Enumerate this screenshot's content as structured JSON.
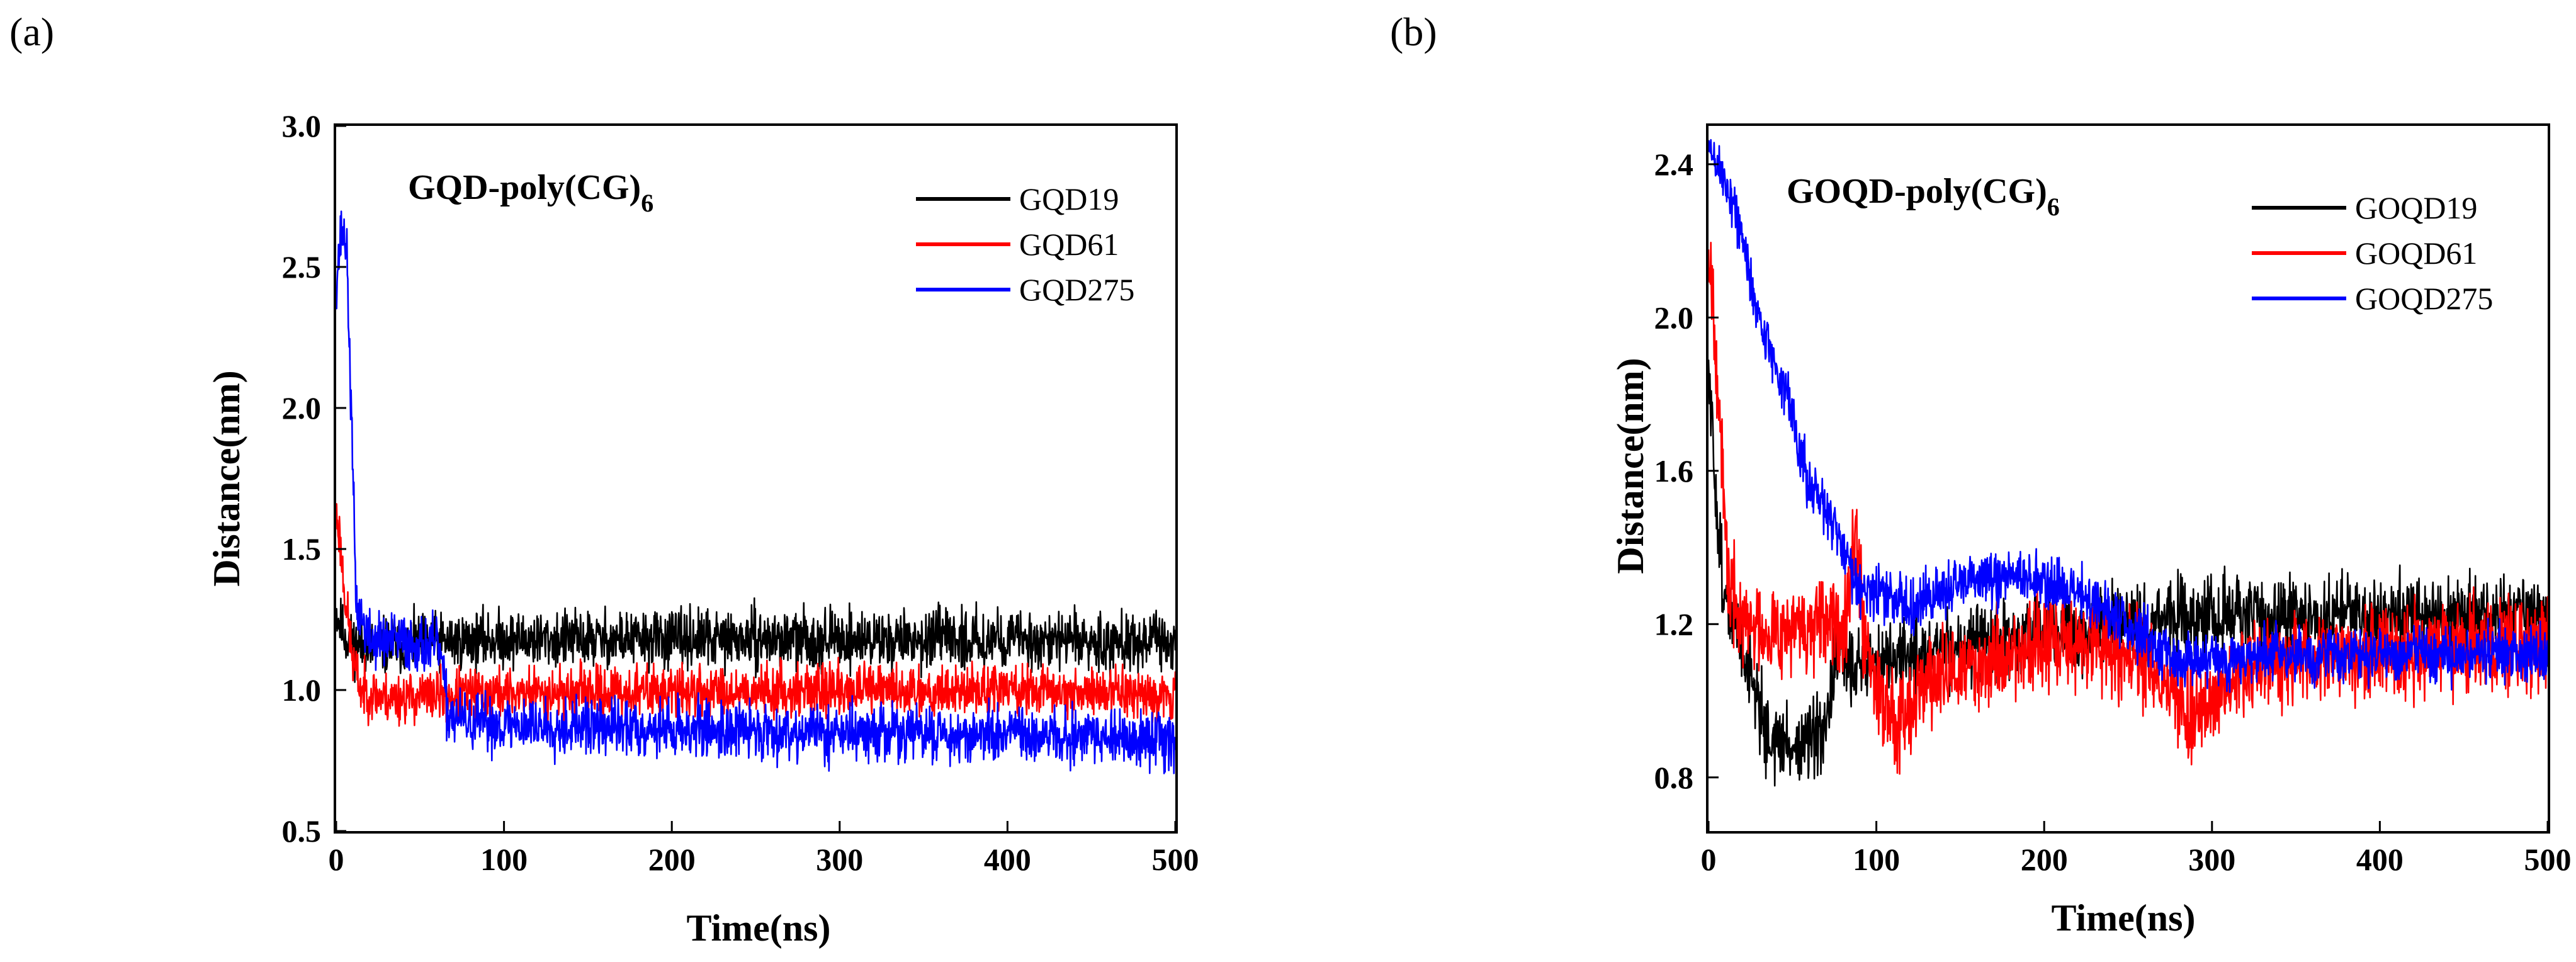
{
  "chart_data": [
    {
      "type": "line",
      "panel_label": "(a)",
      "title_main": "GQD-poly(CG)",
      "title_sub": "6",
      "xlabel": "Time(ns)",
      "ylabel": "Distance(nm)",
      "xlim": [
        0,
        500
      ],
      "ylim": [
        0.5,
        3.0
      ],
      "xticks": [
        0,
        100,
        200,
        300,
        400,
        500
      ],
      "yticks": [
        0.5,
        1.0,
        1.5,
        2.0,
        2.5,
        3.0
      ],
      "xtick_labels": [
        "0",
        "100",
        "200",
        "300",
        "400",
        "500"
      ],
      "ytick_labels": [
        "0.5",
        "1.0",
        "1.5",
        "2.0",
        "2.5",
        "3.0"
      ],
      "legend_position": "top-right",
      "series": [
        {
          "name": "GQD19",
          "color": "#000000",
          "noise": 0.05,
          "seed": 11,
          "trend": [
            [
              0,
              1.28
            ],
            [
              3,
              1.22
            ],
            [
              8,
              1.17
            ],
            [
              20,
              1.15
            ],
            [
              60,
              1.17
            ],
            [
              100,
              1.18
            ],
            [
              250,
              1.18
            ],
            [
              400,
              1.18
            ],
            [
              500,
              1.17
            ]
          ]
        },
        {
          "name": "GQD61",
          "color": "#ff0000",
          "noise": 0.045,
          "seed": 23,
          "trend": [
            [
              0,
              1.62
            ],
            [
              2,
              1.55
            ],
            [
              5,
              1.35
            ],
            [
              10,
              1.1
            ],
            [
              15,
              1.0
            ],
            [
              30,
              0.97
            ],
            [
              60,
              0.98
            ],
            [
              100,
              0.99
            ],
            [
              300,
              1.0
            ],
            [
              400,
              1.0
            ],
            [
              500,
              0.99
            ]
          ]
        },
        {
          "name": "GQD275",
          "color": "#0000ff",
          "noise": 0.05,
          "seed": 37,
          "trend": [
            [
              0,
              2.45
            ],
            [
              3,
              2.62
            ],
            [
              6,
              2.6
            ],
            [
              8,
              2.2
            ],
            [
              12,
              1.3
            ],
            [
              20,
              1.18
            ],
            [
              40,
              1.17
            ],
            [
              62,
              1.15
            ],
            [
              66,
              0.92
            ],
            [
              80,
              0.88
            ],
            [
              150,
              0.87
            ],
            [
              300,
              0.85
            ],
            [
              400,
              0.84
            ],
            [
              500,
              0.82
            ]
          ]
        }
      ]
    },
    {
      "type": "line",
      "panel_label": "(b)",
      "title_main": "GOQD-poly(CG)",
      "title_sub": "6",
      "xlabel": "Time(ns)",
      "ylabel": "Distance(nm)",
      "xlim": [
        0,
        500
      ],
      "ylim": [
        0.66,
        2.5
      ],
      "xticks": [
        0,
        100,
        200,
        300,
        400,
        500
      ],
      "yticks": [
        0.8,
        1.2,
        1.6,
        2.0,
        2.4
      ],
      "xtick_labels": [
        "0",
        "100",
        "200",
        "300",
        "400",
        "500"
      ],
      "ytick_labels": [
        "0.8",
        "1.2",
        "1.6",
        "2.0",
        "2.4"
      ],
      "legend_position": "top-right",
      "series": [
        {
          "name": "GOQD19",
          "color": "#000000",
          "noise": 0.05,
          "seed": 51,
          "trend": [
            [
              0,
              1.85
            ],
            [
              5,
              1.5
            ],
            [
              10,
              1.25
            ],
            [
              20,
              1.15
            ],
            [
              30,
              1.0
            ],
            [
              35,
              0.9
            ],
            [
              50,
              0.88
            ],
            [
              70,
              0.9
            ],
            [
              75,
              1.1
            ],
            [
              100,
              1.1
            ],
            [
              150,
              1.14
            ],
            [
              200,
              1.17
            ],
            [
              250,
              1.2
            ],
            [
              300,
              1.22
            ],
            [
              400,
              1.22
            ],
            [
              500,
              1.22
            ]
          ]
        },
        {
          "name": "GOQD61",
          "color": "#ff0000",
          "noise": 0.06,
          "seed": 67,
          "trend": [
            [
              0,
              2.2
            ],
            [
              3,
              2.05
            ],
            [
              8,
              1.6
            ],
            [
              12,
              1.3
            ],
            [
              20,
              1.2
            ],
            [
              60,
              1.18
            ],
            [
              80,
              1.2
            ],
            [
              88,
              1.45
            ],
            [
              92,
              1.2
            ],
            [
              100,
              1.05
            ],
            [
              110,
              0.95
            ],
            [
              130,
              1.05
            ],
            [
              200,
              1.15
            ],
            [
              230,
              1.15
            ],
            [
              260,
              1.1
            ],
            [
              290,
              0.95
            ],
            [
              310,
              1.05
            ],
            [
              350,
              1.12
            ],
            [
              500,
              1.15
            ]
          ]
        },
        {
          "name": "GOQD275",
          "color": "#0000ff",
          "noise": 0.035,
          "seed": 89,
          "trend": [
            [
              0,
              2.44
            ],
            [
              5,
              2.4
            ],
            [
              15,
              2.3
            ],
            [
              30,
              2.0
            ],
            [
              50,
              1.75
            ],
            [
              60,
              1.55
            ],
            [
              70,
              1.5
            ],
            [
              90,
              1.3
            ],
            [
              120,
              1.25
            ],
            [
              150,
              1.3
            ],
            [
              180,
              1.33
            ],
            [
              220,
              1.28
            ],
            [
              250,
              1.2
            ],
            [
              280,
              1.1
            ],
            [
              330,
              1.12
            ],
            [
              500,
              1.12
            ]
          ]
        }
      ]
    }
  ]
}
